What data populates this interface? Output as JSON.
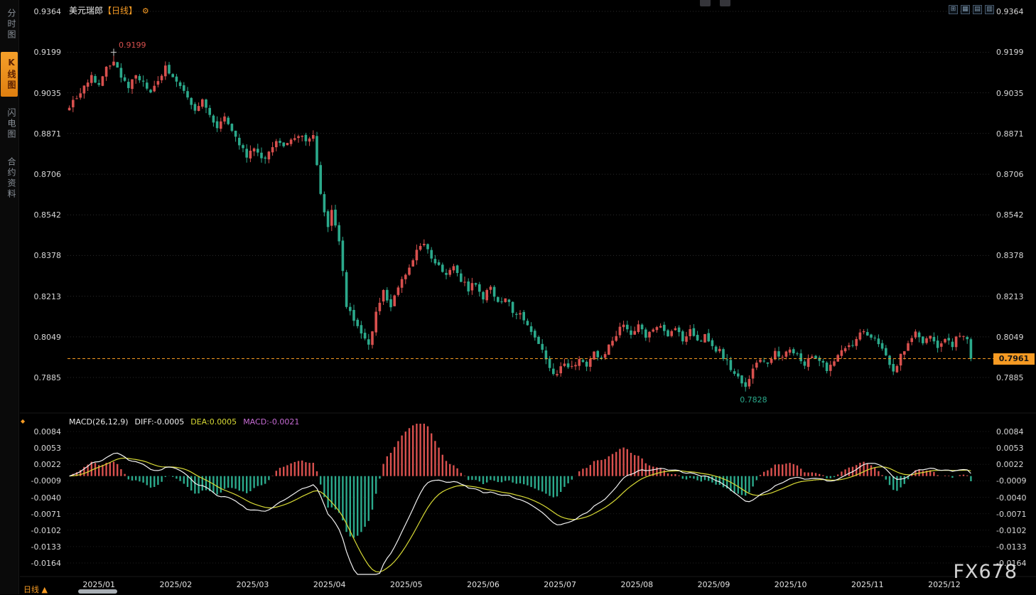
{
  "header": {
    "title": "美元瑞郎",
    "period_tag": "【日线】",
    "settings_icon": "⚙"
  },
  "sidebar": {
    "tabs": [
      {
        "id": "time-share",
        "label": "分时图",
        "active": false
      },
      {
        "id": "kline",
        "label": "K线图",
        "active": true
      },
      {
        "id": "lightning",
        "label": "闪电图",
        "active": false
      },
      {
        "id": "contract-info",
        "label": "合约资料",
        "active": false
      }
    ]
  },
  "toolbar": {
    "icons": [
      {
        "name": "compare-layout-icon",
        "glyph": "⊞"
      },
      {
        "name": "grid-layout-icon",
        "glyph": "▦"
      },
      {
        "name": "row-layout-icon",
        "glyph": "▤"
      },
      {
        "name": "column-layout-icon",
        "glyph": "▥"
      }
    ]
  },
  "footer": {
    "period_label": "日线",
    "arrow": "▲"
  },
  "watermark": "FX678",
  "colors": {
    "up": "#d8504e",
    "down": "#2ba98b",
    "grid": "#2d2d2d",
    "macd_grid": "#1f1f1f",
    "diff_line": "#f2f2f2",
    "dea_line": "#d8da35",
    "macd_text": "#c66bd4",
    "last_price": "#f59a23",
    "axis_text": "#d8d8d8"
  },
  "chart_data": {
    "type": "candlestick",
    "symbol": "美元瑞郎",
    "period": "日线",
    "price_ticks": [
      "0.9364",
      "0.9199",
      "0.9035",
      "0.8871",
      "0.8706",
      "0.8542",
      "0.8378",
      "0.8213",
      "0.8049",
      "0.7885"
    ],
    "macd_ticks": [
      "0.0084",
      "0.0053",
      "0.0022",
      "-0.0009",
      "-0.0040",
      "-0.0071",
      "-0.0102",
      "-0.0133",
      "-0.0164"
    ],
    "months": [
      "2025/01",
      "2025/02",
      "2025/03",
      "2025/04",
      "2025/05",
      "2025/06",
      "2025/07",
      "2025/08",
      "2025/09",
      "2025/10",
      "2025/11",
      "2025/12"
    ],
    "trading_days": 245,
    "high": {
      "day": 12,
      "value": 0.9199
    },
    "low": {
      "day": 183,
      "value": 0.7828
    },
    "last": 0.7961,
    "high_label": "0.9199",
    "low_label": "0.7828",
    "last_label": "0.7961",
    "indicator": {
      "name": "MACD(26,12,9)",
      "diff_label": "DIFF:-0.0005",
      "dea_label": "DEA:0.0005",
      "macd_label": "MACD:-0.0021"
    },
    "close_anchors": [
      [
        0,
        0.8985
      ],
      [
        2,
        0.901
      ],
      [
        4,
        0.906
      ],
      [
        6,
        0.91
      ],
      [
        8,
        0.9075
      ],
      [
        10,
        0.913
      ],
      [
        12,
        0.917
      ],
      [
        14,
        0.9095
      ],
      [
        16,
        0.906
      ],
      [
        18,
        0.911
      ],
      [
        20,
        0.907
      ],
      [
        22,
        0.903
      ],
      [
        24,
        0.908
      ],
      [
        26,
        0.914
      ],
      [
        28,
        0.91
      ],
      [
        30,
        0.9055
      ],
      [
        32,
        0.901
      ],
      [
        34,
        0.896
      ],
      [
        36,
        0.9
      ],
      [
        38,
        0.895
      ],
      [
        40,
        0.89
      ],
      [
        42,
        0.893
      ],
      [
        44,
        0.887
      ],
      [
        46,
        0.883
      ],
      [
        48,
        0.878
      ],
      [
        50,
        0.881
      ],
      [
        52,
        0.876
      ],
      [
        54,
        0.88
      ],
      [
        56,
        0.884
      ],
      [
        58,
        0.881
      ],
      [
        60,
        0.8845
      ],
      [
        62,
        0.886
      ],
      [
        64,
        0.884
      ],
      [
        66,
        0.887
      ],
      [
        68,
        0.862
      ],
      [
        70,
        0.85
      ],
      [
        71,
        0.856
      ],
      [
        73,
        0.844
      ],
      [
        75,
        0.818
      ],
      [
        77,
        0.812
      ],
      [
        79,
        0.806
      ],
      [
        81,
        0.801
      ],
      [
        83,
        0.815
      ],
      [
        85,
        0.823
      ],
      [
        87,
        0.818
      ],
      [
        89,
        0.825
      ],
      [
        92,
        0.832
      ],
      [
        94,
        0.84
      ],
      [
        96,
        0.843
      ],
      [
        98,
        0.837
      ],
      [
        100,
        0.834
      ],
      [
        102,
        0.83
      ],
      [
        104,
        0.834
      ],
      [
        106,
        0.828
      ],
      [
        108,
        0.824
      ],
      [
        110,
        0.827
      ],
      [
        112,
        0.821
      ],
      [
        114,
        0.825
      ],
      [
        116,
        0.818
      ],
      [
        118,
        0.821
      ],
      [
        120,
        0.815
      ],
      [
        122,
        0.815
      ],
      [
        124,
        0.81
      ],
      [
        126,
        0.804
      ],
      [
        128,
        0.799
      ],
      [
        130,
        0.793
      ],
      [
        132,
        0.789
      ],
      [
        134,
        0.795
      ],
      [
        136,
        0.792
      ],
      [
        138,
        0.797
      ],
      [
        140,
        0.794
      ],
      [
        142,
        0.799
      ],
      [
        144,
        0.796
      ],
      [
        146,
        0.801
      ],
      [
        148,
        0.806
      ],
      [
        150,
        0.811
      ],
      [
        152,
        0.806
      ],
      [
        154,
        0.809
      ],
      [
        156,
        0.805
      ],
      [
        158,
        0.808
      ],
      [
        160,
        0.81
      ],
      [
        162,
        0.806
      ],
      [
        164,
        0.808
      ],
      [
        166,
        0.804
      ],
      [
        168,
        0.807
      ],
      [
        170,
        0.803
      ],
      [
        172,
        0.805
      ],
      [
        174,
        0.8
      ],
      [
        176,
        0.799
      ],
      [
        178,
        0.795
      ],
      [
        180,
        0.79
      ],
      [
        182,
        0.786
      ],
      [
        183,
        0.784
      ],
      [
        185,
        0.792
      ],
      [
        187,
        0.796
      ],
      [
        189,
        0.794
      ],
      [
        191,
        0.799
      ],
      [
        193,
        0.796
      ],
      [
        195,
        0.8
      ],
      [
        197,
        0.797
      ],
      [
        199,
        0.794
      ],
      [
        201,
        0.798
      ],
      [
        203,
        0.795
      ],
      [
        205,
        0.792
      ],
      [
        207,
        0.796
      ],
      [
        209,
        0.799
      ],
      [
        211,
        0.801
      ],
      [
        213,
        0.804
      ],
      [
        215,
        0.807
      ],
      [
        217,
        0.805
      ],
      [
        219,
        0.802
      ],
      [
        221,
        0.797
      ],
      [
        223,
        0.79
      ],
      [
        225,
        0.797
      ],
      [
        227,
        0.803
      ],
      [
        229,
        0.806
      ],
      [
        231,
        0.803
      ],
      [
        233,
        0.805
      ],
      [
        235,
        0.801
      ],
      [
        237,
        0.804
      ],
      [
        239,
        0.802
      ],
      [
        241,
        0.806
      ],
      [
        243,
        0.803
      ],
      [
        244,
        0.7961
      ]
    ]
  }
}
